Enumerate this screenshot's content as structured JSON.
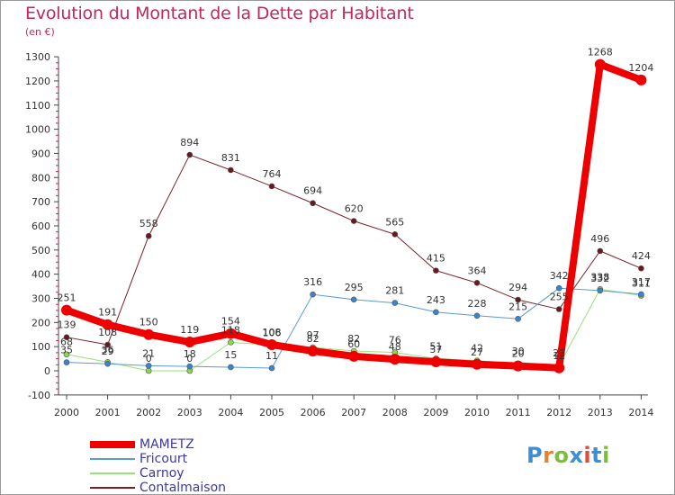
{
  "title": "Evolution du Montant de la Dette par Habitant",
  "unit_label": "(en €)",
  "logo": {
    "text": "Proxiti",
    "colors": [
      "#3a8fd6",
      "#e6822a",
      "#7abf3a",
      "#3a8fd6",
      "#e04a3a",
      "#3a8fd6",
      "#7abf3a"
    ]
  },
  "chart_data": {
    "type": "line",
    "x": [
      "2000",
      "2001",
      "2002",
      "2003",
      "2004",
      "2005",
      "2006",
      "2007",
      "2008",
      "2009",
      "2010",
      "2011",
      "2012",
      "2013",
      "2014"
    ],
    "ylim": [
      -100,
      1300
    ],
    "yticks": [
      -100,
      0,
      100,
      200,
      300,
      400,
      500,
      600,
      700,
      800,
      900,
      1000,
      1100,
      1200,
      1300
    ],
    "grid": false,
    "legend_position": "bottom-left",
    "series": [
      {
        "name": "Contalmaison",
        "color": "#7a1f28",
        "marker": "#6a1820",
        "width": 1,
        "radius": 3,
        "values": [
          139,
          108,
          558,
          894,
          831,
          764,
          694,
          620,
          565,
          415,
          364,
          294,
          255,
          496,
          424
        ]
      },
      {
        "name": "Carnoy",
        "color": "#99e07a",
        "marker": "#88d94f",
        "width": 1,
        "radius": 3,
        "values": [
          68,
          36,
          0,
          0,
          118,
          106,
          97,
          82,
          76,
          51,
          42,
          30,
          22,
          338,
          311
        ]
      },
      {
        "name": "Fricourt",
        "color": "#5a9ad6",
        "marker": "#3a84cc",
        "width": 1,
        "radius": 3,
        "values": [
          35,
          29,
          21,
          18,
          15,
          11,
          316,
          295,
          281,
          243,
          228,
          215,
          342,
          332,
          317
        ]
      },
      {
        "name": "MAMETZ",
        "color": "#ee0000",
        "marker": "#ee0000",
        "width": 8,
        "radius": 6,
        "values": [
          251,
          191,
          150,
          119,
          154,
          108,
          82,
          60,
          48,
          37,
          27,
          20,
          12,
          1268,
          1204
        ]
      }
    ]
  },
  "legend": [
    {
      "name": "MAMETZ",
      "color": "#ee0000"
    },
    {
      "name": "Fricourt",
      "color": "#5a9ad6"
    },
    {
      "name": "Carnoy",
      "color": "#99e07a"
    },
    {
      "name": "Contalmaison",
      "color": "#7a1f28"
    }
  ]
}
